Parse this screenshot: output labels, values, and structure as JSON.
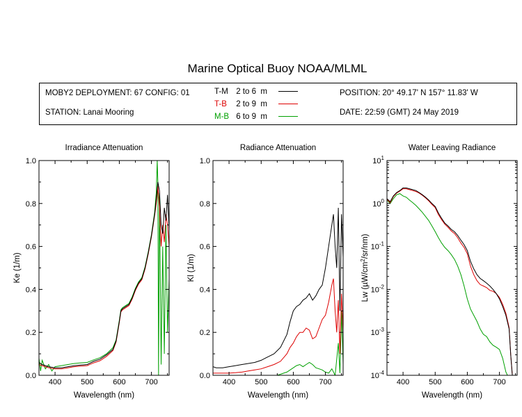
{
  "title": "Marine Optical Buoy NOAA/MLML",
  "info": {
    "deployment": "MOBY2 DEPLOYMENT: 67 CONFIG: 01",
    "station": "STATION: Lanai Mooring",
    "position": "POSITION: 20° 49.17' N   157° 11.83' W",
    "date": "DATE: 22:59 (GMT) 24 May 2019"
  },
  "legend": [
    {
      "label": "T-M",
      "range": "2 to 6",
      "unit": "m",
      "color": "#000000"
    },
    {
      "label": "T-B",
      "range": "2 to 9",
      "unit": "m",
      "color": "#dd0000"
    },
    {
      "label": "M-B",
      "range": "6 to 9",
      "unit": "m",
      "color": "#00a000"
    }
  ],
  "chart_data": [
    {
      "type": "line",
      "title": "Irradiance Attenuation",
      "xlabel": "Wavelength (nm)",
      "ylabel": "Ke  (1/m)",
      "xlim": [
        350,
        755
      ],
      "ylim": [
        0,
        1.0
      ],
      "xticks": [
        400,
        500,
        600,
        700
      ],
      "yticks": [
        "0.0",
        "0.2",
        "0.4",
        "0.6",
        "0.8",
        "1.0"
      ],
      "ytick_values": [
        0,
        0.2,
        0.4,
        0.6,
        0.8,
        1.0
      ],
      "series": [
        {
          "label": "T-M",
          "color": "#000000",
          "x": [
            350,
            360,
            380,
            400,
            420,
            440,
            460,
            480,
            500,
            520,
            540,
            560,
            580,
            590,
            600,
            605,
            610,
            620,
            630,
            640,
            650,
            660,
            670,
            680,
            690,
            700,
            710,
            715,
            720,
            725,
            730,
            735,
            740,
            745,
            750,
            755
          ],
          "y": [
            0.06,
            0.05,
            0.04,
            0.035,
            0.035,
            0.04,
            0.045,
            0.048,
            0.05,
            0.065,
            0.075,
            0.095,
            0.12,
            0.16,
            0.25,
            0.3,
            0.31,
            0.32,
            0.33,
            0.36,
            0.4,
            0.43,
            0.45,
            0.5,
            0.57,
            0.65,
            0.75,
            0.82,
            0.9,
            0.86,
            0.7,
            0.66,
            0.78,
            0.72,
            0.84,
            0.68
          ]
        },
        {
          "label": "T-B",
          "color": "#dd0000",
          "x": [
            350,
            360,
            380,
            400,
            420,
            440,
            460,
            480,
            500,
            520,
            540,
            560,
            580,
            590,
            600,
            605,
            610,
            620,
            630,
            640,
            650,
            660,
            670,
            680,
            690,
            700,
            710,
            715,
            720,
            725,
            730,
            735,
            740,
            745,
            750,
            755
          ],
          "y": [
            0.05,
            0.045,
            0.035,
            0.03,
            0.03,
            0.035,
            0.04,
            0.043,
            0.045,
            0.058,
            0.068,
            0.088,
            0.115,
            0.155,
            0.245,
            0.295,
            0.305,
            0.315,
            0.325,
            0.355,
            0.395,
            0.425,
            0.445,
            0.495,
            0.565,
            0.645,
            0.745,
            0.8,
            0.88,
            0.78,
            0.6,
            0.7,
            0.62,
            0.75,
            0.7,
            0.6
          ]
        },
        {
          "label": "M-B",
          "color": "#00a000",
          "x": [
            350,
            355,
            360,
            370,
            380,
            390,
            400,
            420,
            440,
            460,
            480,
            500,
            520,
            540,
            560,
            580,
            590,
            600,
            605,
            610,
            620,
            630,
            640,
            650,
            660,
            670,
            680,
            690,
            700,
            710,
            715,
            718,
            720,
            722,
            725,
            728,
            730,
            735,
            740,
            745,
            750,
            755
          ],
          "y": [
            0.08,
            0.02,
            0.07,
            0.03,
            0.05,
            0.02,
            0.04,
            0.045,
            0.05,
            0.055,
            0.058,
            0.06,
            0.072,
            0.082,
            0.1,
            0.128,
            0.165,
            0.255,
            0.305,
            0.315,
            0.325,
            0.335,
            0.365,
            0.405,
            0.435,
            0.455,
            0.505,
            0.575,
            0.655,
            0.76,
            0.85,
            1.0,
            0.9,
            0.0,
            0.85,
            0.4,
            0.05,
            0.6,
            0.1,
            0.7,
            0.2,
            0.45
          ]
        }
      ]
    },
    {
      "type": "line",
      "title": "Radiance Attenuation",
      "xlabel": "Wavelength (nm)",
      "ylabel": "Kl  (1/m)",
      "xlim": [
        350,
        755
      ],
      "ylim": [
        0,
        1.0
      ],
      "xticks": [
        400,
        500,
        600,
        700
      ],
      "yticks": [
        "0.0",
        "0.2",
        "0.4",
        "0.6",
        "0.8",
        "1.0"
      ],
      "ytick_values": [
        0,
        0.2,
        0.4,
        0.6,
        0.8,
        1.0
      ],
      "series": [
        {
          "label": "T-M",
          "color": "#000000",
          "x": [
            350,
            360,
            380,
            400,
            420,
            440,
            460,
            480,
            500,
            520,
            540,
            560,
            580,
            590,
            600,
            610,
            620,
            630,
            640,
            650,
            660,
            670,
            680,
            690,
            700,
            710,
            720,
            725,
            730,
            735,
            740,
            745,
            750,
            755
          ],
          "y": [
            0.04,
            0.035,
            0.035,
            0.04,
            0.045,
            0.05,
            0.055,
            0.06,
            0.07,
            0.085,
            0.1,
            0.13,
            0.19,
            0.25,
            0.3,
            0.32,
            0.33,
            0.35,
            0.36,
            0.38,
            0.35,
            0.37,
            0.4,
            0.42,
            0.5,
            0.6,
            0.7,
            0.75,
            0.6,
            0.5,
            0.78,
            0.3,
            0.75,
            0.55
          ]
        },
        {
          "label": "T-B",
          "color": "#dd0000",
          "x": [
            350,
            360,
            380,
            400,
            420,
            440,
            460,
            480,
            500,
            520,
            540,
            560,
            580,
            590,
            600,
            610,
            620,
            630,
            640,
            650,
            660,
            670,
            680,
            690,
            700,
            710,
            720,
            725,
            730,
            735,
            740,
            745,
            750,
            755
          ],
          "y": [
            0.01,
            0.01,
            0.01,
            0.01,
            0.012,
            0.015,
            0.02,
            0.025,
            0.03,
            0.04,
            0.05,
            0.065,
            0.1,
            0.13,
            0.15,
            0.18,
            0.2,
            0.2,
            0.22,
            0.21,
            0.17,
            0.18,
            0.22,
            0.26,
            0.28,
            0.34,
            0.42,
            0.45,
            0.3,
            0.2,
            0.35,
            0.1,
            0.38,
            0.2
          ]
        },
        {
          "label": "M-B",
          "color": "#00a000",
          "x": [
            550,
            560,
            570,
            580,
            590,
            600,
            610,
            620,
            630,
            640,
            650,
            660,
            670,
            680,
            690,
            700,
            710,
            720,
            730,
            740,
            745,
            750,
            755
          ],
          "y": [
            0.0,
            0.005,
            0.01,
            0.015,
            0.025,
            0.035,
            0.045,
            0.05,
            0.04,
            0.05,
            0.06,
            0.05,
            0.035,
            0.03,
            0.025,
            0.015,
            0.01,
            0.03,
            0.0,
            0.15,
            0.01,
            0.3,
            0.05
          ]
        }
      ]
    },
    {
      "type": "line",
      "title": "Water Leaving Radiance",
      "xlabel": "Wavelength (nm)",
      "ylabel": "Lw  (µW/cm²/sr/nm)",
      "xlim": [
        350,
        755
      ],
      "ylim": [
        0.0001,
        10
      ],
      "yscale": "log",
      "xticks": [
        400,
        500,
        600,
        700
      ],
      "yticks": [
        "10^1",
        "10^0",
        "10^-1",
        "10^-2",
        "10^-3",
        "10^-4"
      ],
      "ytick_values": [
        10,
        1,
        0.1,
        0.01,
        0.001,
        0.0001
      ],
      "series": [
        {
          "label": "T-M",
          "color": "#000000",
          "x": [
            350,
            360,
            370,
            380,
            390,
            400,
            410,
            420,
            430,
            440,
            450,
            460,
            470,
            480,
            490,
            500,
            510,
            520,
            530,
            540,
            550,
            560,
            570,
            580,
            590,
            600,
            610,
            620,
            630,
            640,
            650,
            660,
            670,
            680,
            690,
            700,
            710,
            720,
            730,
            735,
            740
          ],
          "y": [
            1.3,
            1.1,
            1.5,
            1.8,
            2.0,
            2.3,
            2.3,
            2.2,
            2.1,
            2.0,
            1.8,
            1.6,
            1.4,
            1.2,
            1.0,
            0.85,
            0.6,
            0.45,
            0.35,
            0.3,
            0.25,
            0.22,
            0.18,
            0.14,
            0.11,
            0.08,
            0.045,
            0.03,
            0.022,
            0.018,
            0.016,
            0.014,
            0.012,
            0.01,
            0.008,
            0.006,
            0.004,
            0.0025,
            0.0012,
            0.0003,
            0.0001
          ]
        },
        {
          "label": "T-B",
          "color": "#dd0000",
          "x": [
            350,
            360,
            370,
            380,
            390,
            400,
            410,
            420,
            430,
            440,
            450,
            460,
            470,
            480,
            490,
            500,
            510,
            520,
            530,
            540,
            550,
            560,
            570,
            580,
            590,
            600,
            610,
            620,
            630,
            640,
            650,
            660,
            670,
            680,
            690,
            700,
            710,
            720,
            730,
            735,
            740
          ],
          "y": [
            1.25,
            1.05,
            1.45,
            1.75,
            1.95,
            2.2,
            2.2,
            2.1,
            2.0,
            1.9,
            1.75,
            1.55,
            1.35,
            1.15,
            0.95,
            0.8,
            0.55,
            0.42,
            0.33,
            0.28,
            0.23,
            0.2,
            0.16,
            0.12,
            0.095,
            0.068,
            0.035,
            0.022,
            0.016,
            0.013,
            0.012,
            0.011,
            0.0095,
            0.009,
            0.008,
            0.0065,
            0.0045,
            0.0028,
            0.0013,
            0.0003,
            0.0001
          ]
        },
        {
          "label": "M-B",
          "color": "#00a000",
          "x": [
            350,
            360,
            370,
            380,
            390,
            400,
            410,
            420,
            430,
            440,
            450,
            460,
            470,
            480,
            490,
            500,
            510,
            520,
            530,
            540,
            550,
            560,
            570,
            580,
            590,
            600,
            610,
            620,
            630,
            640,
            650,
            660,
            670,
            680,
            690,
            700,
            710,
            720,
            725
          ],
          "y": [
            1.2,
            1.0,
            1.3,
            1.6,
            1.7,
            1.5,
            1.4,
            1.2,
            1.05,
            0.9,
            0.75,
            0.62,
            0.5,
            0.4,
            0.3,
            0.22,
            0.16,
            0.12,
            0.095,
            0.08,
            0.065,
            0.05,
            0.035,
            0.022,
            0.012,
            0.006,
            0.0035,
            0.0025,
            0.0018,
            0.0012,
            0.0009,
            0.0008,
            0.0006,
            0.0005,
            0.00045,
            0.0004,
            0.00025,
            0.00012,
            0.0001
          ]
        }
      ]
    }
  ]
}
